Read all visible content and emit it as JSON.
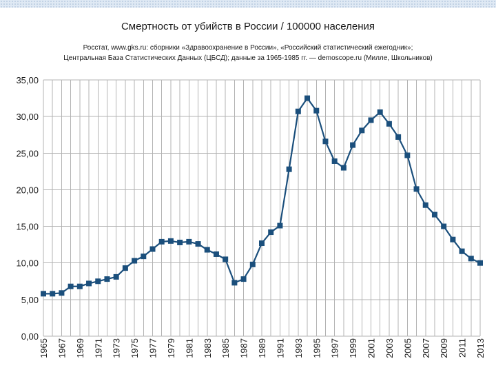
{
  "colors": {
    "line": "#1b4f7c",
    "grid": "#b3b3b3",
    "band": "#dfe9f4"
  },
  "chart_data": {
    "type": "line",
    "title": "Смертность от убийств в России / 100000 населения",
    "subtitle": [
      "Росстат, www.gks.ru: сборники «Здравоохранение в России», «Российский статистический ежегодник»;",
      "Центральная База Статистических Данных (ЦБСД); данные за 1965-1985 гг. — demoscope.ru (Милле, Школьников)"
    ],
    "xlabel": "",
    "ylabel": "",
    "ylim": [
      0,
      35
    ],
    "yticks": [
      "0,00",
      "5,00",
      "10,00",
      "15,00",
      "20,00",
      "25,00",
      "30,00",
      "35,00"
    ],
    "xticks": [
      "1965",
      "1967",
      "1969",
      "1971",
      "1973",
      "1975",
      "1977",
      "1979",
      "1981",
      "1983",
      "1985",
      "1987",
      "1989",
      "1991",
      "1993",
      "1995",
      "1997",
      "1999",
      "2001",
      "2003",
      "2005",
      "2007",
      "2009",
      "2011",
      "2013"
    ],
    "grid": true,
    "legend": "none",
    "x": [
      1965,
      1966,
      1967,
      1968,
      1969,
      1970,
      1971,
      1972,
      1973,
      1974,
      1975,
      1976,
      1977,
      1978,
      1979,
      1980,
      1981,
      1982,
      1983,
      1984,
      1985,
      1986,
      1987,
      1988,
      1989,
      1990,
      1991,
      1992,
      1993,
      1994,
      1995,
      1996,
      1997,
      1998,
      1999,
      2000,
      2001,
      2002,
      2003,
      2004,
      2005,
      2006,
      2007,
      2008,
      2009,
      2010,
      2011,
      2012,
      2013
    ],
    "series": [
      {
        "name": "Смертность от убийств",
        "values": [
          5.8,
          5.8,
          5.9,
          6.8,
          6.8,
          7.2,
          7.5,
          7.8,
          8.1,
          9.3,
          10.3,
          10.9,
          11.9,
          12.9,
          13.0,
          12.8,
          12.9,
          12.6,
          11.8,
          11.2,
          10.5,
          7.3,
          7.8,
          9.8,
          12.7,
          14.2,
          15.1,
          22.8,
          30.7,
          32.5,
          30.8,
          26.6,
          23.9,
          23.0,
          26.1,
          28.1,
          29.5,
          30.6,
          29.0,
          27.2,
          24.7,
          20.1,
          17.9,
          16.6,
          15.0,
          13.2,
          11.6,
          10.6,
          10.0
        ]
      }
    ]
  }
}
